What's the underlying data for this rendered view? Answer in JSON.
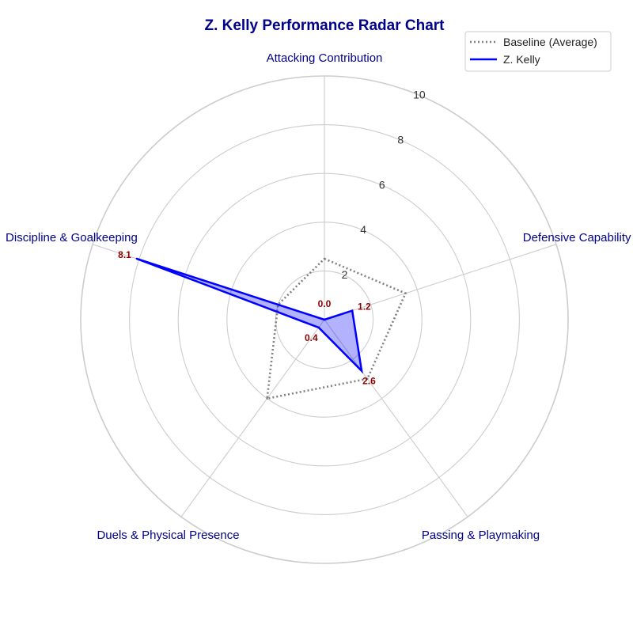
{
  "chart_data": {
    "type": "radar",
    "title": "Z. Kelly Performance Radar Chart",
    "axes": [
      "Attacking Contribution",
      "Defensive Capability",
      "Passing & Playmaking",
      "Duels & Physical Presence",
      "Discipline & Goalkeeping"
    ],
    "rlim": [
      0,
      10
    ],
    "rticks": [
      2,
      4,
      6,
      8,
      10
    ],
    "series": [
      {
        "name": "Baseline (Average)",
        "values": [
          2.5,
          3.5,
          3.0,
          4.0,
          2.0
        ],
        "color": "#808080",
        "style": "dotted",
        "fill": false
      },
      {
        "name": "Z. Kelly",
        "values": [
          0.0,
          1.2,
          2.6,
          0.4,
          8.1
        ],
        "value_labels": [
          "0.0",
          "1.2",
          "2.6",
          "0.4",
          "8.1"
        ],
        "color": "#0000ff",
        "style": "solid",
        "fill": true,
        "fill_color": "#0000ff"
      }
    ],
    "legend_position": "top-right",
    "grid": true,
    "label_color": "#00008b",
    "value_label_color": "#8b0000"
  }
}
